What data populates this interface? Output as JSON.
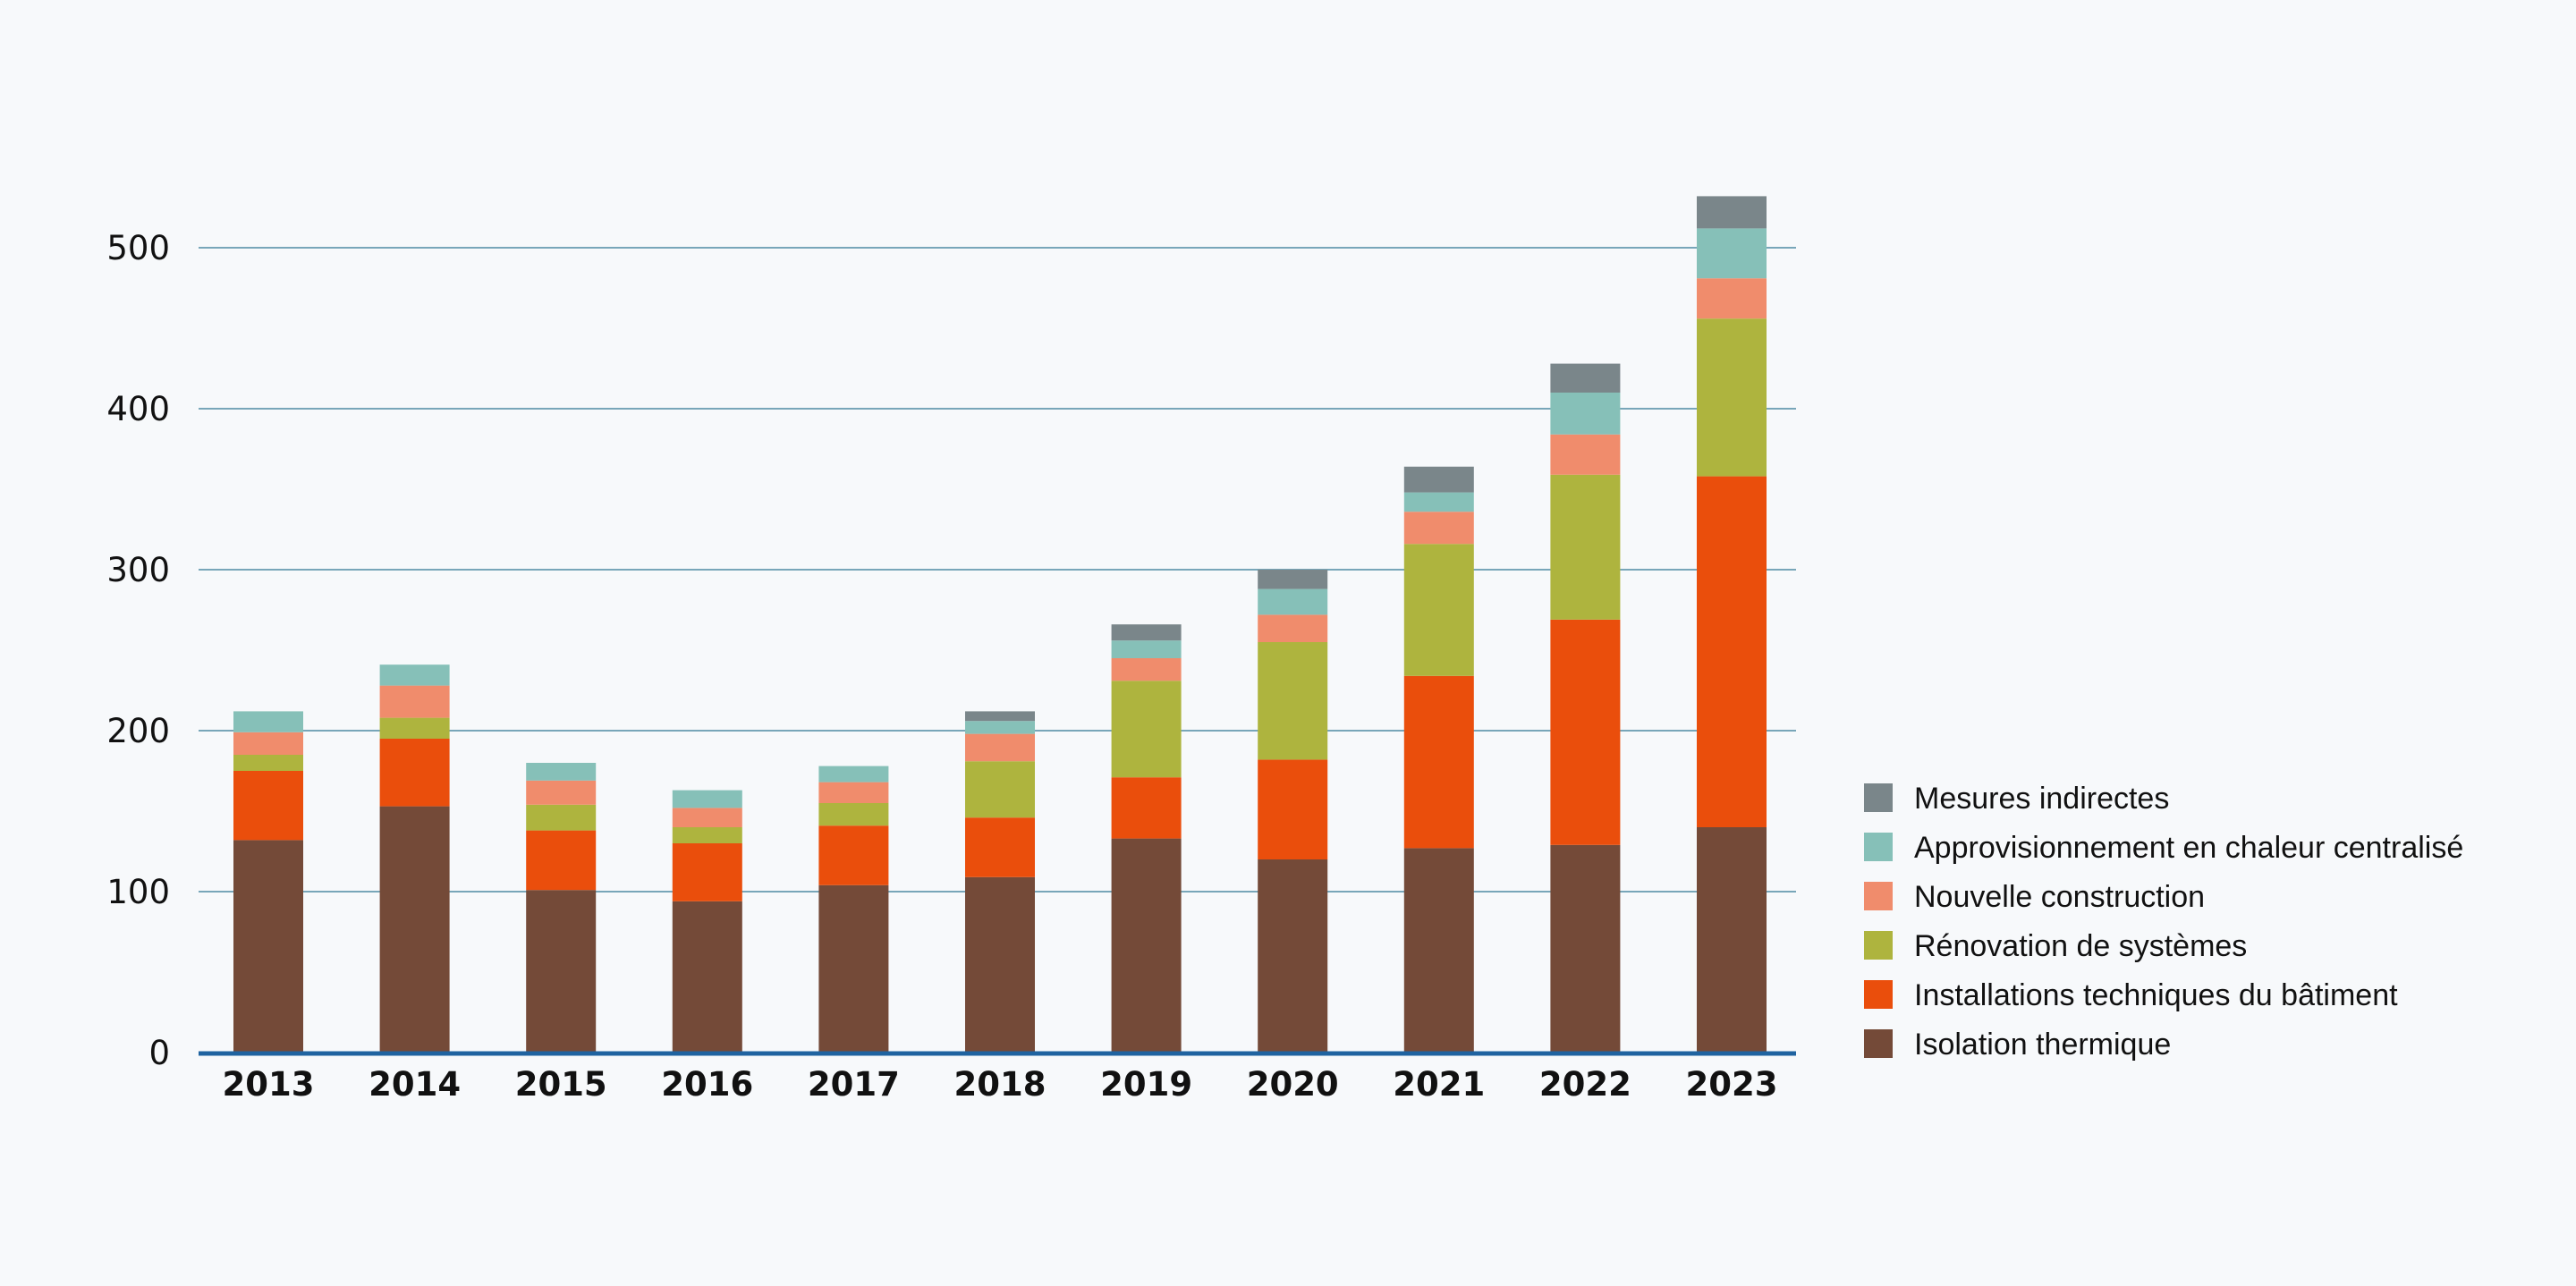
{
  "chart_data": {
    "type": "bar",
    "stacked": true,
    "categories": [
      "2013",
      "2014",
      "2015",
      "2016",
      "2017",
      "2018",
      "2019",
      "2020",
      "2021",
      "2022",
      "2023"
    ],
    "series": [
      {
        "name": "Isolation thermique",
        "color": "#744a38",
        "values": [
          132,
          153,
          101,
          94,
          104,
          109,
          133,
          120,
          127,
          129,
          140
        ]
      },
      {
        "name": "Installations techniques du bâtiment",
        "color": "#ea4e0c",
        "values": [
          43,
          42,
          37,
          36,
          37,
          37,
          38,
          62,
          107,
          140,
          218
        ]
      },
      {
        "name": "Rénovation de systèmes",
        "color": "#aeb43e",
        "values": [
          10,
          13,
          16,
          10,
          14,
          35,
          60,
          73,
          82,
          90,
          98
        ]
      },
      {
        "name": "Nouvelle construction",
        "color": "#f08c6c",
        "values": [
          14,
          20,
          15,
          12,
          13,
          17,
          14,
          17,
          20,
          25,
          25
        ]
      },
      {
        "name": "Approvisionnement en chaleur centralisé",
        "color": "#86c0b8",
        "values": [
          13,
          13,
          11,
          11,
          10,
          8,
          11,
          16,
          12,
          26,
          31
        ]
      },
      {
        "name": "Mesures indirectes",
        "color": "#7a868a",
        "values": [
          0,
          0,
          0,
          0,
          0,
          6,
          10,
          12,
          16,
          18,
          20
        ]
      }
    ],
    "y_ticks": [
      "0",
      "100",
      "200",
      "300",
      "400",
      "500"
    ],
    "ylim": [
      0,
      550
    ],
    "xlabel": "",
    "ylabel": "",
    "title": "",
    "grid": true,
    "legend_position": "right",
    "colors": {
      "grid": "#4f8ba3",
      "baseline": "#1f63a0",
      "text": "#111111"
    }
  }
}
